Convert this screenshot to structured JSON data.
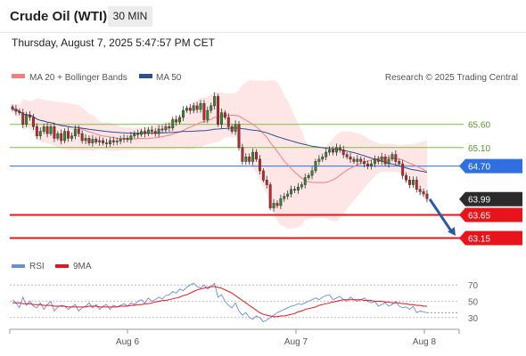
{
  "header": {
    "title": "Crude Oil (WTI)",
    "timeframe": "30 MIN",
    "timestamp": "Thursday, August 7, 2025 5:47:57 PM CET"
  },
  "chart_data": [
    {
      "type": "candlestick",
      "legend": [
        {
          "label": "MA 20 + Bollinger Bands",
          "color": "#f08080"
        },
        {
          "label": "MA 50",
          "color": "#2f4f8f"
        }
      ],
      "credit": "Research © 2025 Trading Central",
      "ylim": [
        62.7,
        66.4
      ],
      "levels": [
        {
          "value": 65.6,
          "label": "65.60",
          "kind": "resistance",
          "color": "#7cbf3f"
        },
        {
          "value": 65.1,
          "label": "65.10",
          "kind": "resistance",
          "color": "#7cbf3f"
        },
        {
          "value": 64.7,
          "label": "64.70",
          "kind": "pivot",
          "color": "#2f6fe0"
        },
        {
          "value": 63.65,
          "label": "63.65",
          "kind": "support",
          "color": "#e8141b"
        },
        {
          "value": 63.15,
          "label": "63.15",
          "kind": "support",
          "color": "#e8141b"
        }
      ],
      "last_price": {
        "value": 63.99,
        "label": "63.99"
      },
      "forecast_arrow": {
        "from": 63.99,
        "to": 63.2
      },
      "x_labels": [
        "Aug 6",
        "Aug 7",
        "Aug 8"
      ],
      "closes": [
        65.93,
        65.88,
        65.85,
        65.6,
        65.8,
        65.75,
        65.55,
        65.35,
        65.45,
        65.55,
        65.4,
        65.55,
        65.3,
        65.4,
        65.25,
        65.45,
        65.3,
        65.35,
        65.5,
        65.4,
        65.25,
        65.3,
        65.2,
        65.28,
        65.22,
        65.25,
        65.2,
        65.18,
        65.25,
        65.22,
        65.24,
        65.28,
        65.3,
        65.27,
        65.35,
        65.4,
        65.38,
        65.45,
        65.4,
        65.48,
        65.45,
        65.4,
        65.5,
        65.48,
        65.55,
        65.52,
        65.7,
        65.65,
        65.75,
        65.9,
        65.95,
        65.9,
        66.0,
        65.92,
        66.05,
        65.7,
        65.9,
        66.0,
        66.2,
        65.6,
        65.85,
        65.75,
        65.55,
        65.45,
        65.6,
        65.1,
        64.8,
        64.9,
        64.8,
        65.0,
        64.85,
        64.6,
        64.4,
        64.3,
        63.8,
        63.9,
        63.85,
        64.0,
        64.05,
        64.1,
        64.2,
        64.18,
        64.25,
        64.3,
        64.45,
        64.5,
        64.6,
        64.8,
        64.85,
        64.9,
        65.0,
        65.05,
        65.0,
        65.1,
        65.05,
        64.95,
        64.9,
        64.85,
        64.8,
        64.85,
        64.8,
        64.75,
        64.7,
        64.75,
        64.85,
        64.8,
        64.9,
        64.75,
        64.85,
        64.95,
        64.8,
        64.75,
        64.5,
        64.4,
        64.3,
        64.4,
        64.2,
        64.15,
        64.1,
        64.0
      ],
      "indicator": {
        "legend": [
          {
            "label": "RSI",
            "color": "#6b8cde"
          },
          {
            "label": "9MA",
            "color": "#e8141b"
          }
        ],
        "ylim": [
          20,
          80
        ],
        "ticks": [
          "70",
          "50",
          "30"
        ],
        "tick_values": [
          70,
          50,
          30
        ],
        "rsi": [
          52,
          48,
          42,
          55,
          45,
          50,
          44,
          42,
          48,
          40,
          46,
          50,
          38,
          43,
          45,
          44,
          40,
          43,
          46,
          38,
          42,
          44,
          48,
          42,
          46,
          40,
          44,
          46,
          40,
          45,
          43,
          45,
          47,
          44,
          48,
          46,
          50,
          52,
          48,
          54,
          50,
          52,
          55,
          53,
          57,
          58,
          62,
          60,
          65,
          63,
          67,
          70,
          72,
          68,
          66,
          70,
          65,
          68,
          72,
          55,
          58,
          50,
          45,
          42,
          48,
          38,
          33,
          36,
          30,
          28,
          32,
          30,
          25,
          27,
          30,
          33,
          36,
          38,
          40,
          42,
          44,
          45,
          47,
          46,
          48,
          50,
          52,
          54,
          52,
          55,
          57,
          58,
          52,
          54,
          56,
          52,
          50,
          55,
          52,
          50,
          52,
          54,
          50,
          48,
          50,
          44,
          46,
          48,
          44,
          46,
          50,
          44,
          42,
          43,
          40,
          44,
          36,
          38,
          37,
          36
        ],
        "ma9": [
          48,
          48,
          48,
          47,
          47,
          47,
          46,
          46,
          46,
          45,
          45,
          45,
          44,
          44,
          44,
          44,
          43,
          43,
          43,
          43,
          43,
          43,
          44,
          44,
          44,
          43,
          43,
          43,
          43,
          43,
          43,
          44,
          44,
          44,
          45,
          45,
          46,
          46,
          47,
          47,
          48,
          49,
          50,
          51,
          51,
          52,
          53,
          54,
          55,
          57,
          58,
          60,
          62,
          64,
          65,
          66,
          67,
          68,
          68,
          67,
          66,
          64,
          62,
          60,
          57,
          54,
          51,
          48,
          45,
          42,
          39,
          36,
          34,
          33,
          32,
          31,
          31,
          32,
          32,
          33,
          34,
          35,
          37,
          38,
          40,
          41,
          42,
          43,
          45,
          46,
          47,
          48,
          49,
          50,
          51,
          52,
          52,
          52,
          52,
          52,
          52,
          51,
          51,
          51,
          50,
          50,
          50,
          49,
          49,
          48,
          48,
          48,
          47,
          47,
          46,
          46,
          45,
          45,
          44,
          44
        ]
      }
    }
  ]
}
